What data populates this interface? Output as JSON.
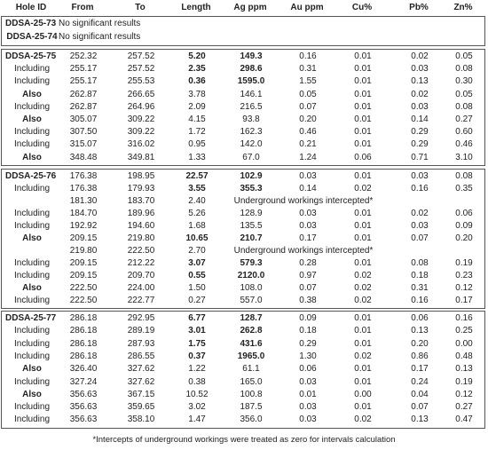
{
  "header": [
    "Hole ID",
    "From",
    "To",
    "Length",
    "Ag ppm",
    "Au ppm",
    "Cu%",
    "Pb%",
    "Zn%"
  ],
  "sections": [
    {
      "rows": [
        {
          "hole": "DDSA-25-73",
          "note": "No significant results",
          "bold": [
            0
          ]
        },
        {
          "hole": "DDSA-25-74",
          "note": "No significant results",
          "bold": [
            0
          ]
        }
      ]
    },
    {
      "rows": [
        {
          "hole": "DDSA-25-75",
          "values": [
            "252.32",
            "257.52",
            "5.20",
            "149.3",
            "0.16",
            "0.01",
            "0.02",
            "0.05"
          ],
          "bold": [
            0,
            3,
            4
          ]
        },
        {
          "hole": "Including",
          "values": [
            "255.17",
            "257.52",
            "2.35",
            "298.6",
            "0.31",
            "0.01",
            "0.03",
            "0.08"
          ],
          "bold": [
            3,
            4
          ]
        },
        {
          "hole": "Including",
          "values": [
            "255.17",
            "255.53",
            "0.36",
            "1595.0",
            "1.55",
            "0.01",
            "0.13",
            "0.30"
          ],
          "bold": [
            3,
            4
          ]
        },
        {
          "hole": "Also",
          "values": [
            "262.87",
            "266.65",
            "3.78",
            "146.1",
            "0.05",
            "0.01",
            "0.02",
            "0.05"
          ],
          "bold": [
            0
          ]
        },
        {
          "hole": "Including",
          "values": [
            "262.87",
            "264.96",
            "2.09",
            "216.5",
            "0.07",
            "0.01",
            "0.03",
            "0.08"
          ]
        },
        {
          "hole": "Also",
          "values": [
            "305.07",
            "309.22",
            "4.15",
            "93.8",
            "0.20",
            "0.01",
            "0.14",
            "0.27"
          ],
          "bold": [
            0
          ]
        },
        {
          "hole": "Including",
          "values": [
            "307.50",
            "309.22",
            "1.72",
            "162.3",
            "0.46",
            "0.01",
            "0.29",
            "0.60"
          ]
        },
        {
          "hole": "Including",
          "values": [
            "315.07",
            "316.02",
            "0.95",
            "142.0",
            "0.21",
            "0.01",
            "0.29",
            "0.46"
          ]
        },
        {
          "hole": "Also",
          "values": [
            "348.48",
            "349.81",
            "1.33",
            "67.0",
            "1.24",
            "0.06",
            "0.71",
            "3.10"
          ],
          "bold": [
            0
          ]
        }
      ]
    },
    {
      "rows": [
        {
          "hole": "DDSA-25-76",
          "values": [
            "176.38",
            "198.95",
            "22.57",
            "102.9",
            "0.03",
            "0.01",
            "0.03",
            "0.08"
          ],
          "bold": [
            0,
            3,
            4
          ]
        },
        {
          "hole": "Including",
          "values": [
            "176.38",
            "179.93",
            "3.55",
            "355.3",
            "0.14",
            "0.02",
            "0.16",
            "0.35"
          ],
          "bold": [
            3,
            4
          ]
        },
        {
          "values": [
            "181.30",
            "183.70",
            "2.40"
          ],
          "note": "Underground workings intercepted*"
        },
        {
          "hole": "Including",
          "values": [
            "184.70",
            "189.96",
            "5.26",
            "128.9",
            "0.03",
            "0.01",
            "0.02",
            "0.06"
          ]
        },
        {
          "hole": "Including",
          "values": [
            "192.92",
            "194.60",
            "1.68",
            "135.5",
            "0.03",
            "0.01",
            "0.03",
            "0.09"
          ]
        },
        {
          "hole": "Also",
          "values": [
            "209.15",
            "219.80",
            "10.65",
            "210.7",
            "0.17",
            "0.01",
            "0.07",
            "0.20"
          ],
          "bold": [
            0,
            3,
            4
          ]
        },
        {
          "values": [
            "219.80",
            "222.50",
            "2.70"
          ],
          "note": "Underground workings intercepted*"
        },
        {
          "hole": "Including",
          "values": [
            "209.15",
            "212.22",
            "3.07",
            "579.3",
            "0.28",
            "0.01",
            "0.08",
            "0.19"
          ],
          "bold": [
            3,
            4
          ]
        },
        {
          "hole": "Including",
          "values": [
            "209.15",
            "209.70",
            "0.55",
            "2120.0",
            "0.97",
            "0.02",
            "0.18",
            "0.23"
          ],
          "bold": [
            3,
            4
          ]
        },
        {
          "hole": "Also",
          "values": [
            "222.50",
            "224.00",
            "1.50",
            "108.0",
            "0.07",
            "0.02",
            "0.31",
            "0.12"
          ],
          "bold": [
            0
          ]
        },
        {
          "hole": "Including",
          "values": [
            "222.50",
            "222.77",
            "0.27",
            "557.0",
            "0.38",
            "0.02",
            "0.16",
            "0.17"
          ]
        }
      ]
    },
    {
      "rows": [
        {
          "hole": "DDSA-25-77",
          "values": [
            "286.18",
            "292.95",
            "6.77",
            "128.7",
            "0.09",
            "0.01",
            "0.06",
            "0.16"
          ],
          "bold": [
            0,
            3,
            4
          ]
        },
        {
          "hole": "Including",
          "values": [
            "286.18",
            "289.19",
            "3.01",
            "262.8",
            "0.18",
            "0.01",
            "0.13",
            "0.25"
          ],
          "bold": [
            3,
            4
          ]
        },
        {
          "hole": "Including",
          "values": [
            "286.18",
            "287.93",
            "1.75",
            "431.6",
            "0.29",
            "0.01",
            "0.20",
            "0.00"
          ],
          "bold": [
            3,
            4
          ]
        },
        {
          "hole": "Including",
          "values": [
            "286.18",
            "286.55",
            "0.37",
            "1965.0",
            "1.30",
            "0.02",
            "0.86",
            "0.48"
          ],
          "bold": [
            3,
            4
          ]
        },
        {
          "hole": "Also",
          "values": [
            "326.40",
            "327.62",
            "1.22",
            "61.1",
            "0.06",
            "0.01",
            "0.17",
            "0.13"
          ],
          "bold": [
            0
          ]
        },
        {
          "hole": "Including",
          "values": [
            "327.24",
            "327.62",
            "0.38",
            "165.0",
            "0.03",
            "0.01",
            "0.24",
            "0.19"
          ]
        },
        {
          "hole": "Also",
          "values": [
            "356.63",
            "367.15",
            "10.52",
            "100.8",
            "0.01",
            "0.00",
            "0.04",
            "0.12"
          ],
          "bold": [
            0
          ]
        },
        {
          "hole": "Including",
          "values": [
            "356.63",
            "359.65",
            "3.02",
            "187.5",
            "0.03",
            "0.01",
            "0.07",
            "0.27"
          ]
        },
        {
          "hole": "Including",
          "values": [
            "356.63",
            "358.10",
            "1.47",
            "356.0",
            "0.03",
            "0.02",
            "0.13",
            "0.47"
          ]
        }
      ]
    }
  ],
  "footnote": "*Intercepts of underground workings were treated as zero for intervals calculation"
}
